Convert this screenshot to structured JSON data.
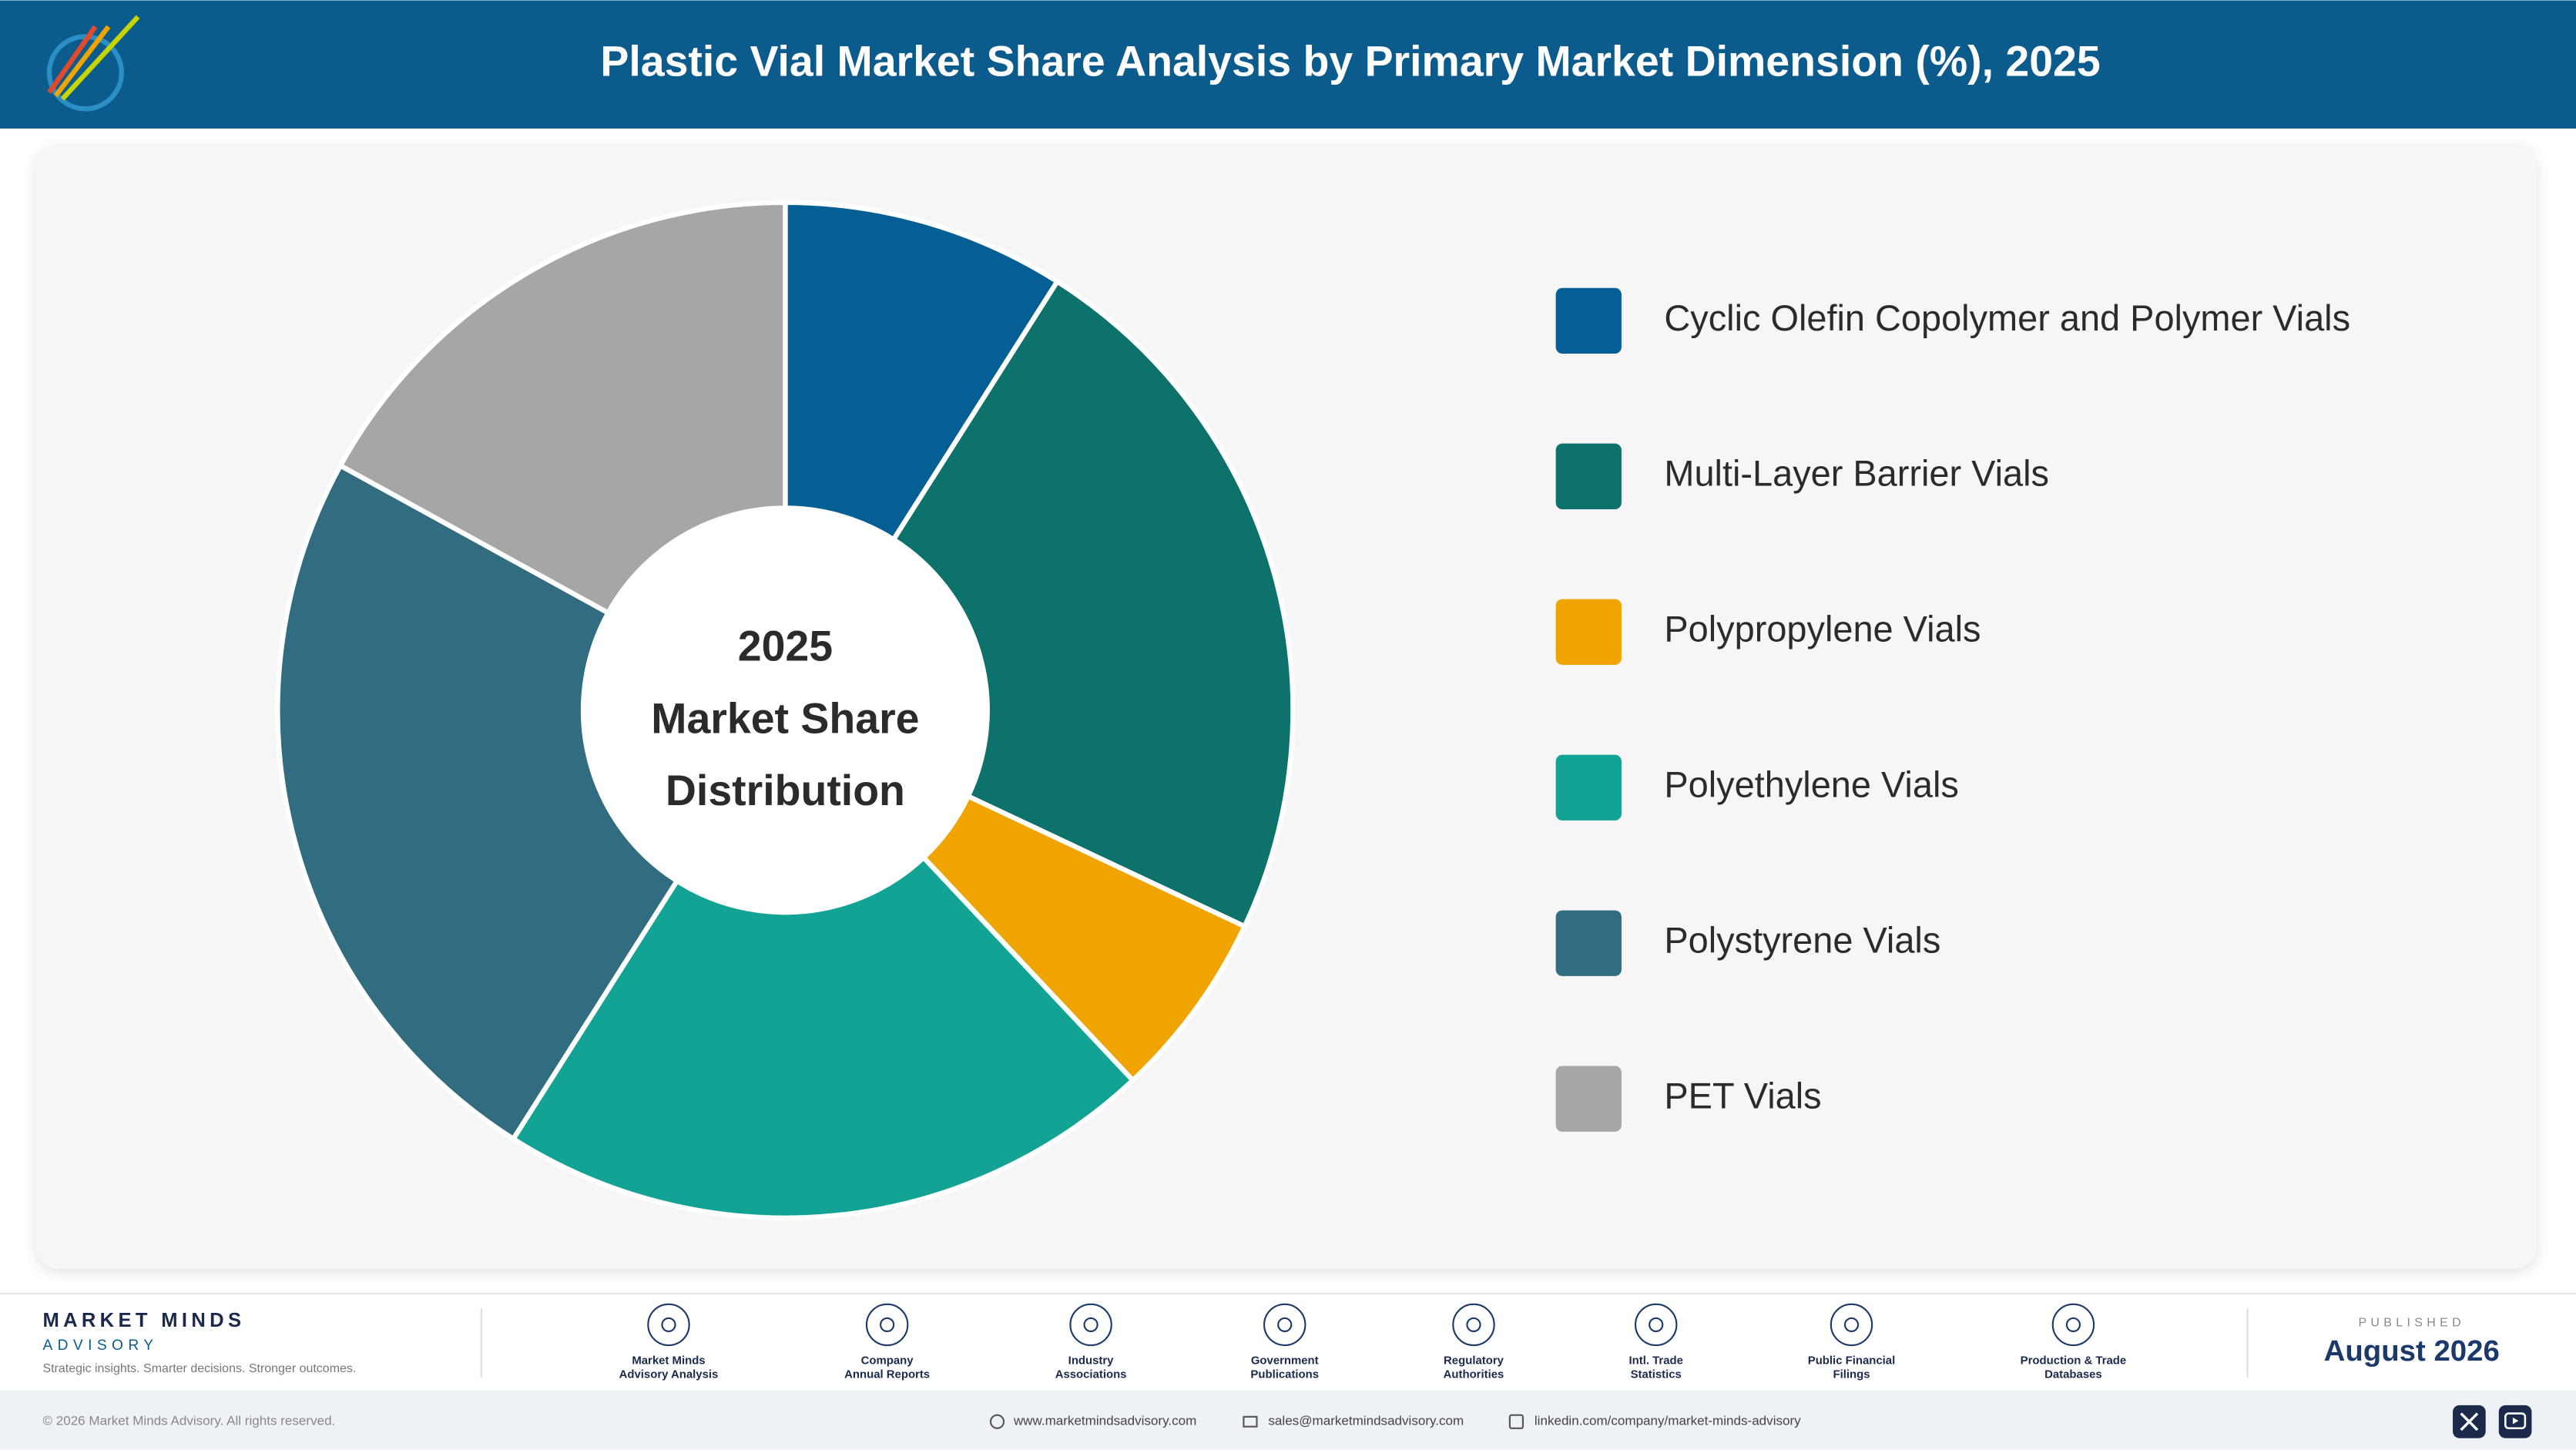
{
  "header": {
    "title": "Plastic Vial Market Share Analysis by Primary Market Dimension (%), 2025"
  },
  "chart_data": {
    "type": "donut",
    "center_text": [
      "2025",
      "Market Share",
      "Distribution"
    ],
    "categories": [
      "Cyclic Olefin Copolymer and Polymer Vials",
      "Multi-Layer Barrier Vials",
      "Polypropylene Vials",
      "Polyethylene Vials",
      "Polystyrene Vials",
      "PET Vials"
    ],
    "values": [
      9,
      23,
      6,
      21,
      24,
      17
    ],
    "colors": [
      "#065f94",
      "#0c726b",
      "#f0a400",
      "#12a394",
      "#316c80",
      "#a6a6a6"
    ],
    "legend": "right"
  },
  "footer": {
    "brand": "MARKET MINDS",
    "brand_sub": "ADVISORY",
    "tagline": "Strategic insights. Smarter decisions. Stronger outcomes.",
    "sources": [
      [
        "Market Minds",
        "Advisory Analysis"
      ],
      [
        "Company",
        "Annual Reports"
      ],
      [
        "Industry",
        "Associations"
      ],
      [
        "Government",
        "Publications"
      ],
      [
        "Regulatory",
        "Authorities"
      ],
      [
        "Intl. Trade",
        "Statistics"
      ],
      [
        "Public Financial",
        "Filings"
      ],
      [
        "Production & Trade",
        "Databases"
      ]
    ],
    "published_label": "PUBLISHED",
    "published_date": "August 2026",
    "copyright": "© 2026 Market Minds Advisory. All rights reserved.",
    "website": "www.marketmindsadvisory.com",
    "email": "sales@marketmindsadvisory.com",
    "linkedin": "linkedin.com/company/market-minds-advisory"
  }
}
